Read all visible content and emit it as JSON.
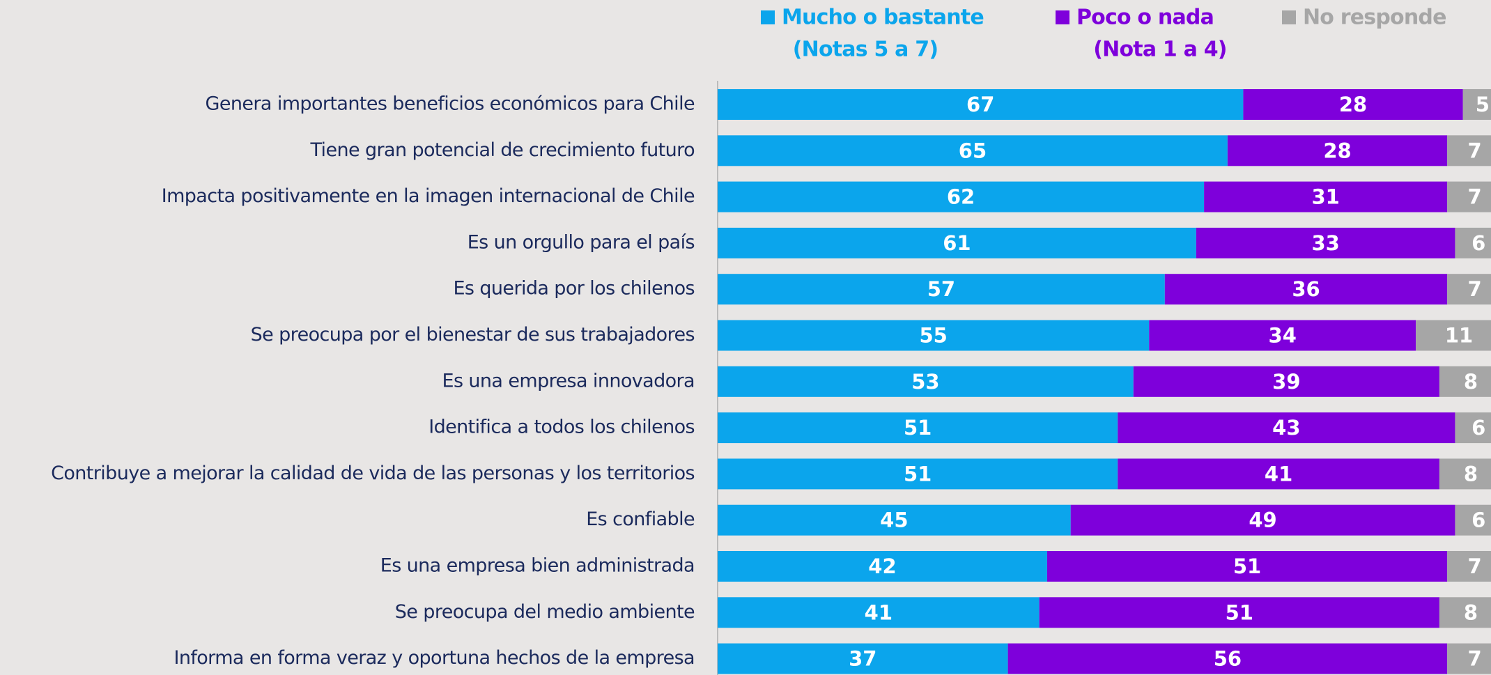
{
  "chart_data": {
    "type": "stacked_bar_horizontal",
    "categories": [
      "Genera importantes beneficios económicos para Chile",
      "Tiene gran potencial de crecimiento futuro",
      "Impacta positivamente en la imagen internacional de Chile",
      "Es un orgullo para el país",
      "Es querida por los chilenos",
      "Se preocupa por el bienestar de sus trabajadores",
      "Es una empresa innovadora",
      "Identifica a todos los chilenos",
      "Contribuye a mejorar la calidad de vida de las personas y los territorios",
      "Es confiable",
      "Es una empresa bien administrada",
      "Se preocupa del medio ambiente",
      "Informa en forma veraz y oportuna hechos de la empresa"
    ],
    "series": [
      {
        "name": "Mucho o bastante",
        "subtitle": "(Notas 5 a 7)",
        "color": "#0ba5ec",
        "values": [
          67,
          65,
          62,
          61,
          57,
          55,
          53,
          51,
          51,
          45,
          42,
          41,
          37
        ]
      },
      {
        "name": "Poco o nada",
        "subtitle": "(Nota 1 a 4)",
        "color": "#7e00db",
        "values": [
          28,
          28,
          31,
          33,
          36,
          34,
          39,
          43,
          41,
          49,
          51,
          51,
          56
        ]
      },
      {
        "name": "No responde",
        "color": "#a6a6a6",
        "values": [
          5,
          7,
          7,
          6,
          7,
          11,
          8,
          6,
          8,
          6,
          7,
          8,
          7
        ]
      }
    ]
  }
}
